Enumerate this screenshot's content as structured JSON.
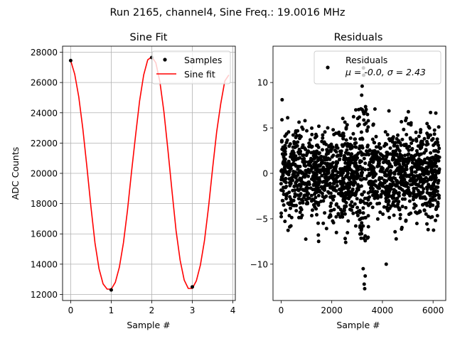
{
  "suptitle": "Run 2165, channel4, Sine Freq.: 19.0016 MHz",
  "colors": {
    "fit": "#ff0000",
    "points": "#000000",
    "grid": "#b0b0b0",
    "axes": "#000000"
  },
  "chart_data": [
    {
      "type": "line",
      "title": "Sine Fit",
      "xlabel": "Sample #",
      "ylabel": "ADC Counts",
      "grid": true,
      "legend_position": "top-right",
      "xlim": [
        -0.2,
        4.06
      ],
      "ylim": [
        11600,
        28400
      ],
      "xticks": [
        0,
        1,
        2,
        3,
        4
      ],
      "yticks": [
        12000,
        14000,
        16000,
        18000,
        20000,
        22000,
        24000,
        26000,
        28000
      ],
      "series": [
        {
          "name": "Samples",
          "kind": "scatter",
          "x": [
            0,
            1,
            2,
            3
          ],
          "y": [
            27450,
            12300,
            27650,
            12500
          ]
        },
        {
          "name": "Sine fit",
          "kind": "line",
          "x": [
            0,
            0.1,
            0.2,
            0.3,
            0.4,
            0.5,
            0.6,
            0.7,
            0.8,
            0.9,
            1.0,
            1.1,
            1.2,
            1.3,
            1.4,
            1.5,
            1.6,
            1.7,
            1.8,
            1.9,
            2.0,
            2.1,
            2.2,
            2.3,
            2.4,
            2.5,
            2.6,
            2.7,
            2.8,
            2.9,
            3.0,
            3.1,
            3.2,
            3.3,
            3.4,
            3.5,
            3.6,
            3.7,
            3.8,
            3.9
          ],
          "y": [
            27450,
            26550,
            25050,
            22950,
            20450,
            17800,
            15400,
            13700,
            12700,
            12350,
            12350,
            12800,
            13800,
            15400,
            17550,
            20100,
            22500,
            24800,
            26500,
            27500,
            27700,
            27300,
            26050,
            24050,
            21500,
            18800,
            16200,
            14250,
            12950,
            12400,
            12400,
            12900,
            13950,
            15550,
            17800,
            20350,
            22750,
            24600,
            26100,
            26500
          ]
        }
      ]
    },
    {
      "type": "scatter",
      "title": "Residuals",
      "xlabel": "Sample #",
      "ylabel": "",
      "grid": false,
      "legend_position": "top-right",
      "legend_label": "Residuals",
      "legend_stats": "μ = -0.0, σ = 2.43",
      "xlim": [
        -320,
        6500
      ],
      "ylim": [
        -14,
        14
      ],
      "xticks": [
        0,
        2000,
        4000,
        6000
      ],
      "yticks": [
        -10,
        -5,
        0,
        5,
        10
      ],
      "n_points": 6250,
      "mean": 0.0,
      "sigma": 2.43,
      "outliers": [
        {
          "x": 40,
          "y": 8.1
        },
        {
          "x": 3250,
          "y": 11.6
        },
        {
          "x": 3260,
          "y": 10.8
        },
        {
          "x": 3200,
          "y": 9.6
        },
        {
          "x": 3300,
          "y": -12.7
        },
        {
          "x": 3280,
          "y": -12.2
        },
        {
          "x": 3320,
          "y": -11.3
        },
        {
          "x": 4150,
          "y": -10.0
        },
        {
          "x": 3240,
          "y": -10.5
        },
        {
          "x": 2550,
          "y": -7.6
        },
        {
          "x": 5900,
          "y": 6.7
        },
        {
          "x": 3180,
          "y": 8.6
        }
      ]
    }
  ]
}
